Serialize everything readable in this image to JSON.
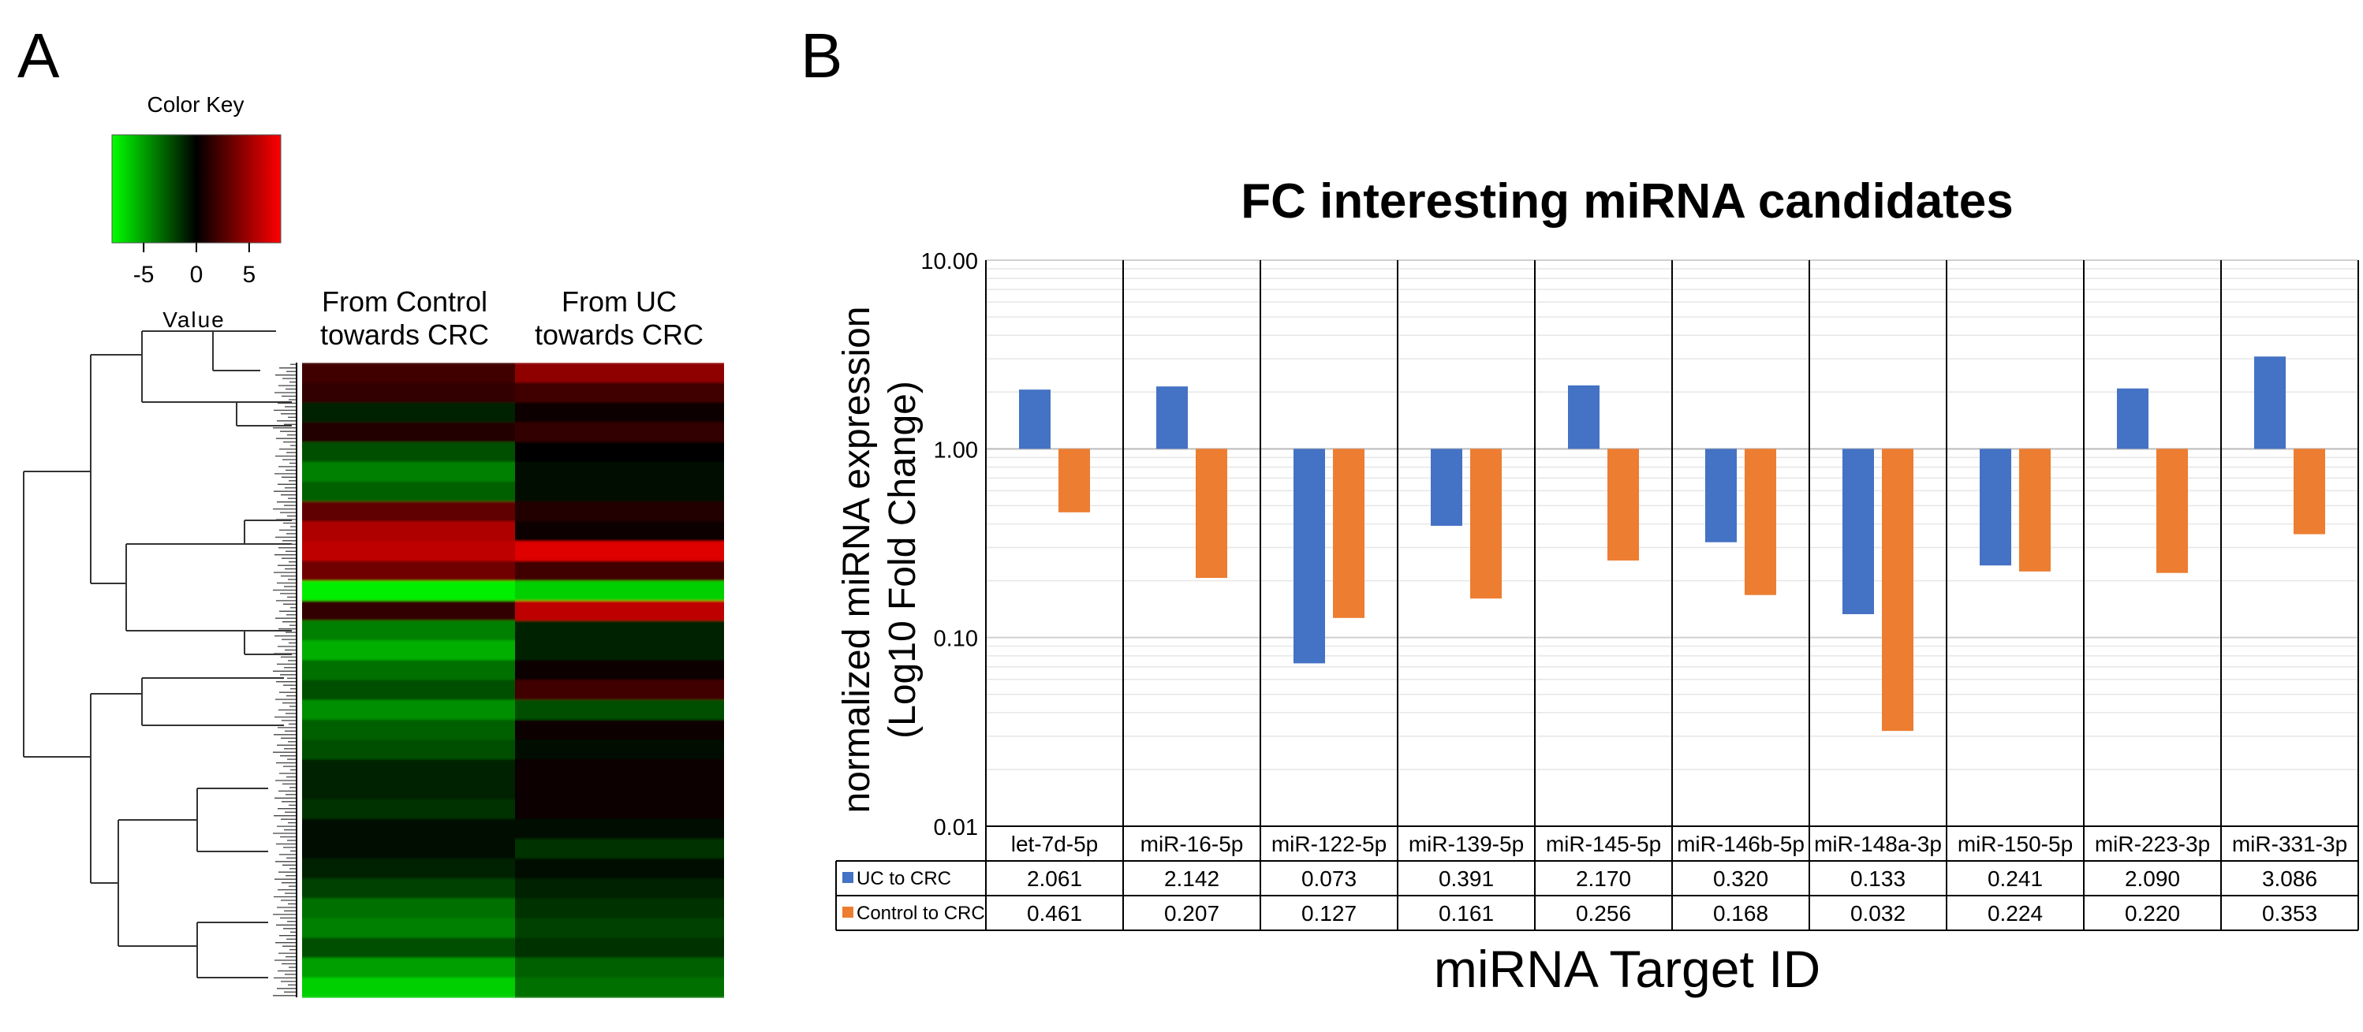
{
  "panel_a": {
    "label": "A",
    "color_key": {
      "title": "Color Key",
      "xlabel": "Value",
      "ticks": [
        -5,
        0,
        5
      ],
      "range": [
        -8,
        8
      ],
      "colors": [
        "#00ff00",
        "#000000",
        "#ff0000"
      ]
    },
    "columns": [
      "From Control towards CRC",
      "From UC towards CRC"
    ],
    "column_labels": [
      {
        "line1": "From Control",
        "line2": "towards  CRC"
      },
      {
        "line1": "From UC",
        "line2": "towards CRC"
      }
    ]
  },
  "panel_b": {
    "label": "B",
    "table_headers": {
      "uc_row": "UC to CRC",
      "control_row": "Control to CRC"
    }
  },
  "chart_data": [
    {
      "type": "heatmap",
      "title": "",
      "legend_title": "Color Key",
      "legend_xlabel": "Value",
      "columns": [
        "From Control towards CRC",
        "From UC towards CRC"
      ],
      "value_range": [
        -8,
        8
      ],
      "colormap": [
        "#00ff00",
        "#000000",
        "#ff0000"
      ],
      "row_bands": [
        {
          "control": 2.0,
          "uc": 4.5
        },
        {
          "control": 1.5,
          "uc": 2.0
        },
        {
          "control": -1.0,
          "uc": 0.5
        },
        {
          "control": 1.0,
          "uc": 1.5
        },
        {
          "control": -2.5,
          "uc": 0.0
        },
        {
          "control": -4.0,
          "uc": -0.5
        },
        {
          "control": -3.0,
          "uc": -0.5
        },
        {
          "control": 3.0,
          "uc": 1.0
        },
        {
          "control": 5.5,
          "uc": 0.5
        },
        {
          "control": 6.0,
          "uc": 7.0
        },
        {
          "control": 3.5,
          "uc": 2.0
        },
        {
          "control": -7.5,
          "uc": -6.5
        },
        {
          "control": 1.5,
          "uc": 6.0
        },
        {
          "control": -4.0,
          "uc": -1.0
        },
        {
          "control": -5.5,
          "uc": -1.0
        },
        {
          "control": -3.5,
          "uc": 0.5
        },
        {
          "control": -2.5,
          "uc": 2.0
        },
        {
          "control": -4.5,
          "uc": -2.5
        },
        {
          "control": -3.0,
          "uc": 0.5
        },
        {
          "control": -2.5,
          "uc": -0.5
        },
        {
          "control": -1.0,
          "uc": 0.5
        },
        {
          "control": -1.0,
          "uc": 0.5
        },
        {
          "control": -1.5,
          "uc": 0.5
        },
        {
          "control": -0.5,
          "uc": -0.5
        },
        {
          "control": -0.5,
          "uc": -1.5
        },
        {
          "control": -1.0,
          "uc": -0.5
        },
        {
          "control": -2.0,
          "uc": -1.0
        },
        {
          "control": -3.5,
          "uc": -1.5
        },
        {
          "control": -4.0,
          "uc": -2.0
        },
        {
          "control": -2.5,
          "uc": -1.5
        },
        {
          "control": -5.0,
          "uc": -3.0
        },
        {
          "control": -6.5,
          "uc": -3.5
        }
      ]
    },
    {
      "type": "bar",
      "title": "FC interesting miRNA candidates",
      "xlabel": "miRNA Target ID",
      "ylabel_line1": "normalized miRNA expression",
      "ylabel_line2": "(Log10 Fold Change)",
      "yscale": "log",
      "ylim": [
        0.01,
        10
      ],
      "yticks": [
        "0.01",
        "0.10",
        "1.00",
        "10.00"
      ],
      "baseline": 1.0,
      "categories": [
        "let-7d-5p",
        "miR-16-5p",
        "miR-122-5p",
        "miR-139-5p",
        "miR-145-5p",
        "miR-146b-5p",
        "miR-148a-3p",
        "miR-150-5p",
        "miR-223-3p",
        "miR-331-3p"
      ],
      "series": [
        {
          "name": "UC to CRC",
          "color": "#4472c4",
          "values": [
            2.061,
            2.142,
            0.073,
            0.391,
            2.17,
            0.32,
            0.133,
            0.241,
            2.09,
            3.086
          ],
          "labels": [
            "2.061",
            "2.142",
            "0.073",
            "0.391",
            "2.170",
            "0.320",
            "0.133",
            "0.241",
            "2.090",
            "3.086"
          ]
        },
        {
          "name": "Control to CRC",
          "color": "#ed7d31",
          "values": [
            0.461,
            0.207,
            0.127,
            0.161,
            0.256,
            0.168,
            0.032,
            0.224,
            0.22,
            0.353
          ],
          "labels": [
            "0.461",
            "0.207",
            "0.127",
            "0.161",
            "0.256",
            "0.168",
            "0.032",
            "0.224",
            "0.220",
            "0.353"
          ]
        }
      ]
    }
  ]
}
